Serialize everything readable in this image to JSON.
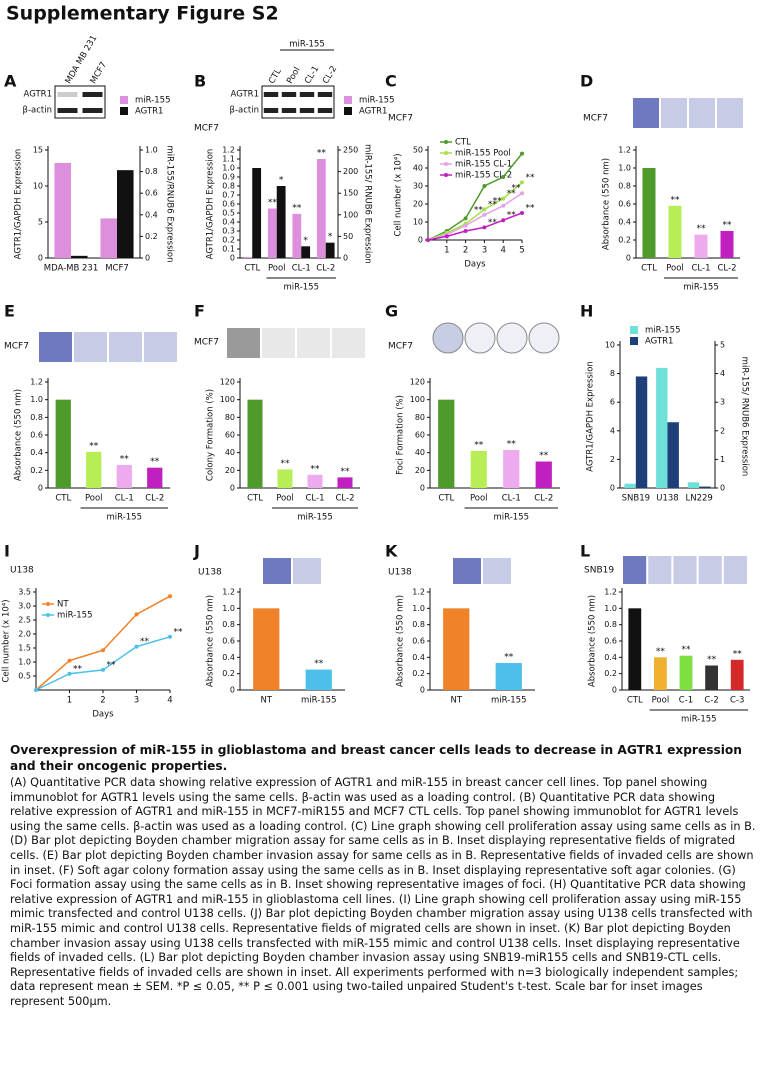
{
  "title": "Supplementary Figure S2",
  "chart_data": [
    {
      "panel": "A",
      "type": "bar",
      "categories": [
        "MDA-MB 231",
        "MCF7"
      ],
      "ylabel": "AGTR1/GAPDH Expression",
      "y2label": "miR-155/RNUB6 Expression",
      "ylim": [
        0,
        15
      ],
      "yticks": [
        0,
        5,
        10,
        15
      ],
      "y2lim": [
        0,
        1
      ],
      "y2ticks": [
        0,
        0.2,
        0.4,
        0.6,
        0.8,
        {
          "value": 1,
          "label": "1.0"
        }
      ],
      "blot": {
        "lanes": [
          "MDA MB 231",
          "MCF7"
        ],
        "rows": [
          "AGTR1",
          "β-actin"
        ]
      },
      "series": [
        {
          "name": "miR-155",
          "color": "#dd8fdd",
          "values": [
            13.2,
            5.5
          ]
        },
        {
          "name": "AGTR1",
          "color": "#111111",
          "values": [
            0.3,
            12.2
          ]
        }
      ]
    },
    {
      "panel": "B",
      "type": "bar",
      "cell_line": "MCF7",
      "categories": [
        "CTL",
        "Pool",
        "CL-1",
        "CL-2"
      ],
      "group_label": "miR-155",
      "ylabel": "AGTR1/GAPDH Expression",
      "y2label": "miR-155/ RNUB6 Expression",
      "ylim": [
        0,
        1.2
      ],
      "yticks": [
        0,
        0.1,
        0.2,
        0.3,
        0.4,
        0.5,
        0.6,
        0.7,
        0.8,
        0.9,
        {
          "value": 1,
          "label": "1.0"
        },
        1.1,
        1.2
      ],
      "y2lim": [
        0,
        250
      ],
      "y2ticks": [
        0,
        50,
        100,
        150,
        200,
        250
      ],
      "blot": {
        "lanes": [
          "CTL",
          "Pool",
          "CL-1",
          "CL-2"
        ],
        "lane_group": "miR-155",
        "rows": [
          "AGTR1",
          "β-actin"
        ]
      },
      "series": [
        {
          "name": "miR-155",
          "color": "#dd8fdd",
          "values": [
            0.01,
            0.55,
            0.49,
            1.1
          ],
          "sig": [
            null,
            "**",
            "**",
            "**"
          ]
        },
        {
          "name": "AGTR1",
          "color": "#111111",
          "values": [
            1.0,
            0.8,
            0.13,
            0.17
          ],
          "sig": [
            null,
            "*",
            "*",
            "*"
          ]
        }
      ]
    },
    {
      "panel": "C",
      "type": "line",
      "cell_line": "MCF7",
      "xlabel": "Days",
      "ylabel": "Cell number (x 10⁴)",
      "x": [
        0,
        1,
        2,
        3,
        4,
        5
      ],
      "xlim": [
        0,
        5
      ],
      "xticks": [
        1,
        2,
        3,
        4,
        5
      ],
      "ylim": [
        0,
        50
      ],
      "yticks": [
        0,
        10,
        20,
        30,
        40,
        50
      ],
      "series": [
        {
          "name": "CTL",
          "color": "#4e9a2a",
          "values": [
            0,
            5,
            12,
            30,
            35,
            48
          ]
        },
        {
          "name": "miR-155 Pool",
          "color": "#a6e04a",
          "values": [
            0,
            4,
            9,
            17,
            23,
            32
          ],
          "sig": [
            null,
            null,
            null,
            "**",
            "**",
            "**"
          ]
        },
        {
          "name": "miR-155 CL-1",
          "color": "#e6a2e6",
          "values": [
            0,
            3,
            8,
            14,
            19,
            26
          ],
          "sig": [
            null,
            null,
            null,
            "**",
            "**",
            "**"
          ]
        },
        {
          "name": "miR-155 CL-2",
          "color": "#c020c0",
          "values": [
            0,
            2,
            5,
            7,
            11,
            15
          ],
          "sig": [
            null,
            null,
            null,
            "**",
            "**",
            "**"
          ]
        }
      ]
    },
    {
      "panel": "D",
      "type": "bar",
      "cell_line": "MCF7",
      "categories": [
        "CTL",
        "Pool",
        "CL-1",
        "CL-2"
      ],
      "group_label": "miR-155",
      "ylabel": "Absorbance (550 nm)",
      "ylim": [
        0,
        1.2
      ],
      "yticks": [
        0,
        0.2,
        0.4,
        0.6,
        0.8,
        {
          "value": 1,
          "label": "1.0"
        },
        1.2
      ],
      "values": [
        1.0,
        0.58,
        0.26,
        0.3
      ],
      "colors": [
        "#4e9a2a",
        "#b8ee55",
        "#eeaaee",
        "#c020c0"
      ],
      "sig": [
        null,
        "**",
        "**",
        "**"
      ]
    },
    {
      "panel": "E",
      "type": "bar",
      "cell_line": "MCF7",
      "categories": [
        "CTL",
        "Pool",
        "CL-1",
        "CL-2"
      ],
      "group_label": "miR-155",
      "ylabel": "Absorbance (550 nm)",
      "ylim": [
        0,
        1.2
      ],
      "yticks": [
        0,
        0.2,
        0.4,
        0.6,
        0.8,
        {
          "value": 1,
          "label": "1.0"
        },
        1.2
      ],
      "values": [
        1.0,
        0.41,
        0.26,
        0.23
      ],
      "colors": [
        "#4e9a2a",
        "#b8ee55",
        "#eeaaee",
        "#c020c0"
      ],
      "sig": [
        null,
        "**",
        "**",
        "**"
      ]
    },
    {
      "panel": "F",
      "type": "bar",
      "cell_line": "MCF7",
      "categories": [
        "CTL",
        "Pool",
        "CL-1",
        "CL-2"
      ],
      "group_label": "miR-155",
      "ylabel": "Colony Formation (%)",
      "ylim": [
        0,
        120
      ],
      "yticks": [
        0,
        20,
        40,
        60,
        80,
        100,
        120
      ],
      "values": [
        100,
        21,
        15,
        12
      ],
      "colors": [
        "#4e9a2a",
        "#b8ee55",
        "#eeaaee",
        "#c020c0"
      ],
      "sig": [
        null,
        "**",
        "**",
        "**"
      ]
    },
    {
      "panel": "G",
      "type": "bar",
      "cell_line": "MCF7",
      "categories": [
        "CTL",
        "Pool",
        "CL-1",
        "CL-2"
      ],
      "group_label": "miR-155",
      "ylabel": "Foci Formation (%)",
      "ylim": [
        0,
        120
      ],
      "yticks": [
        0,
        20,
        40,
        60,
        80,
        100,
        120
      ],
      "values": [
        100,
        42,
        43,
        30
      ],
      "colors": [
        "#4e9a2a",
        "#b8ee55",
        "#eeaaee",
        "#c020c0"
      ],
      "sig": [
        null,
        "**",
        "**",
        "**"
      ]
    },
    {
      "panel": "H",
      "type": "bar",
      "categories": [
        "SNB19",
        "U138",
        "LN229"
      ],
      "ylabel": "AGTR1/GAPDH Expression",
      "y2label": "miR-155/ RNUB6 Expression",
      "ylim": [
        0,
        10
      ],
      "yticks": [
        0,
        2,
        4,
        6,
        8,
        10
      ],
      "y2lim": [
        0,
        5
      ],
      "y2ticks": [
        0,
        1,
        2,
        3,
        4,
        5
      ],
      "series": [
        {
          "name": "miR-155",
          "color": "#6fe0d8",
          "values": [
            0.3,
            8.4,
            0.4
          ]
        },
        {
          "name": "AGTR1",
          "color": "#1f3f7a",
          "values": [
            3.9,
            2.3,
            0.05
          ],
          "axis": "y2"
        }
      ]
    },
    {
      "panel": "I",
      "type": "line",
      "cell_line": "U138",
      "xlabel": "Days",
      "ylabel": "Cell number (x 10⁴)",
      "x": [
        0,
        1,
        2,
        3,
        4
      ],
      "xlim": [
        0,
        4
      ],
      "xticks": [
        1,
        2,
        3,
        4
      ],
      "ylim": [
        0,
        3.5
      ],
      "yticks": [
        0.5,
        {
          "value": 1,
          "label": "1.0"
        },
        1.5,
        {
          "value": 2,
          "label": "2.0"
        },
        2.5,
        {
          "value": 3,
          "label": "3.0"
        },
        3.5
      ],
      "series": [
        {
          "name": "NT",
          "color": "#f0822a",
          "values": [
            0,
            1.05,
            1.42,
            2.7,
            3.35
          ]
        },
        {
          "name": "miR-155",
          "color": "#4cc0ea",
          "values": [
            0,
            0.58,
            0.72,
            1.55,
            1.9
          ],
          "sig": [
            null,
            "**",
            "**",
            "**",
            "**"
          ]
        }
      ]
    },
    {
      "panel": "J",
      "type": "bar",
      "cell_line": "U138",
      "categories": [
        "NT",
        "miR-155"
      ],
      "ylabel": "Absorbance (550 nm)",
      "ylim": [
        0,
        1.2
      ],
      "yticks": [
        0,
        0.2,
        0.4,
        0.6,
        0.8,
        {
          "value": 1,
          "label": "1.0"
        },
        1.2
      ],
      "values": [
        1.0,
        0.25
      ],
      "colors": [
        "#f0822a",
        "#4cc0ea"
      ],
      "sig": [
        null,
        "**"
      ]
    },
    {
      "panel": "K",
      "type": "bar",
      "cell_line": "U138",
      "categories": [
        "NT",
        "miR-155"
      ],
      "ylabel": "Absorbance (550 nm)",
      "ylim": [
        0,
        1.2
      ],
      "yticks": [
        0,
        0.2,
        0.4,
        0.6,
        0.8,
        {
          "value": 1,
          "label": "1.0"
        },
        1.2
      ],
      "values": [
        1.0,
        0.33
      ],
      "colors": [
        "#f0822a",
        "#4cc0ea"
      ],
      "sig": [
        null,
        "**"
      ]
    },
    {
      "panel": "L",
      "type": "bar",
      "cell_line": "SNB19",
      "categories": [
        "CTL",
        "Pool",
        "C-1",
        "C-2",
        "C-3"
      ],
      "group_label": "miR-155",
      "ylabel": "Absorbance (550 nm)",
      "ylim": [
        0,
        1.2
      ],
      "yticks": [
        0,
        0.2,
        0.4,
        0.6,
        0.8,
        {
          "value": 1,
          "label": "1.0"
        },
        1.2
      ],
      "values": [
        1.0,
        0.4,
        0.42,
        0.3,
        0.37
      ],
      "colors": [
        "#111111",
        "#f0b030",
        "#7ee040",
        "#333333",
        "#d42a2a"
      ],
      "sig": [
        null,
        "**",
        "**",
        "**",
        "**"
      ]
    }
  ],
  "caption": {
    "title": "Overexpression of miR-155 in glioblastoma and breast cancer cells leads to decrease in AGTR1 expression and their oncogenic properties.",
    "body": "(A) Quantitative PCR data showing relative expression of AGTR1 and miR-155 in breast cancer cell lines. Top panel showing immunoblot for AGTR1 levels using the same cells. β-actin was used as a loading control. (B) Quantitative PCR data showing relative expression of AGTR1 and miR-155 in MCF7-miR155 and MCF7 CTL cells. Top panel showing immunoblot for AGTR1 levels using the same cells. β-actin was used as a loading control. (C) Line graph showing cell proliferation assay using same cells as in B. (D) Bar plot depicting Boyden chamber migration assay for same cells as in B. Inset displaying representative fields of migrated cells. (E) Bar plot depicting Boyden chamber invasion assay for same cells as in B. Representative fields of invaded cells are shown in inset. (F) Soft agar colony formation assay using the same cells as in B. Inset displaying representative soft agar colonies. (G) Foci formation assay using the same cells as in B. Inset showing representative images of foci. (H) Quantitative PCR data showing relative expression of AGTR1 and miR-155 in glioblastoma cell lines. (I) Line graph showing cell proliferation assay using miR-155 mimic transfected and control U138 cells. (J) Bar plot depicting Boyden chamber migration assay using U138 cells transfected with miR-155 mimic and control U138 cells. Representative fields of migrated cells are shown in inset. (K) Bar plot depicting Boyden chamber invasion assay using U138 cells transfected with miR-155 mimic and control U138 cells. Inset displaying representative fields of invaded cells. (L) Bar plot depicting Boyden chamber invasion assay using SNB19-miR155 cells and SNB19-CTL cells. Representative fields of invaded cells are shown in inset. All experiments performed with n=3 biologically independent samples; data represent mean ± SEM. *P ≤ 0.05, ** P ≤ 0.001 using two-tailed unpaired Student's t-test. Scale bar for inset images represent 500µm."
  }
}
